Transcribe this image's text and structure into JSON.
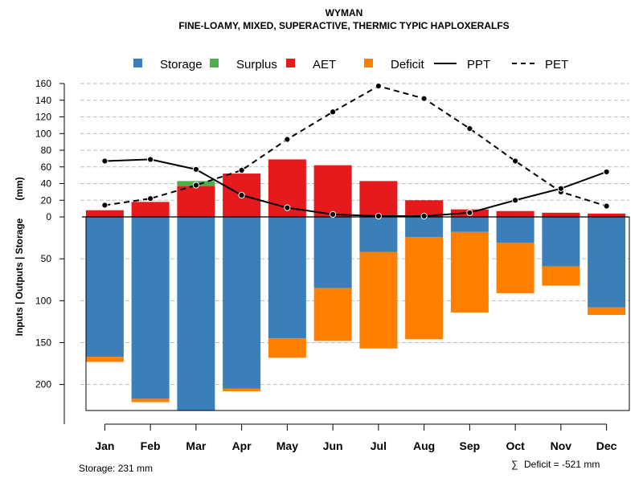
{
  "chart_data": {
    "type": "bar",
    "title": "WYMAN",
    "subtitle": "FINE-LOAMY, MIXED, SUPERACTIVE, THERMIC TYPIC HAPLOXERALFS",
    "ylabel": "Inputs | Outputs | Storage",
    "ylabel_unit": "(mm)",
    "categories": [
      "Jan",
      "Feb",
      "Mar",
      "Apr",
      "May",
      "Jun",
      "Jul",
      "Aug",
      "Sep",
      "Oct",
      "Nov",
      "Dec"
    ],
    "upper_ylim": [
      0,
      160
    ],
    "upper_ticks": [
      "0",
      "20",
      "40",
      "60",
      "80",
      "100",
      "120",
      "140",
      "160"
    ],
    "lower_ylim": [
      0,
      231
    ],
    "lower_ticks": [
      "50",
      "100",
      "150",
      "200"
    ],
    "legend": {
      "storage": "Storage",
      "surplus": "Surplus",
      "aet": "AET",
      "deficit": "Deficit",
      "ppt": "PPT",
      "pet": "PET"
    },
    "colors": {
      "storage": "#3a7fba",
      "surplus": "#4daf4a",
      "aet": "#e41a1c",
      "deficit": "#ff7f00",
      "ppt": "#000000",
      "pet": "#000000",
      "grid": "#bdbdbd"
    },
    "series": [
      {
        "name": "AET",
        "values": [
          8,
          18,
          37,
          52,
          69,
          62,
          43,
          20,
          9,
          7,
          5,
          4
        ]
      },
      {
        "name": "Surplus",
        "values": [
          0,
          0,
          6,
          0,
          0,
          0,
          0,
          0,
          0,
          0,
          0,
          0
        ]
      },
      {
        "name": "PPT",
        "values": [
          67,
          69,
          57,
          26,
          11,
          3,
          1,
          1,
          5,
          20,
          34,
          54
        ]
      },
      {
        "name": "PET",
        "values": [
          14,
          22,
          38,
          56,
          93,
          126,
          157,
          142,
          106,
          67,
          30,
          13
        ]
      },
      {
        "name": "Storage",
        "values": [
          167,
          217,
          231,
          205,
          145,
          85,
          42,
          24,
          18,
          31,
          59,
          108
        ]
      },
      {
        "name": "Deficit",
        "values": [
          6,
          4,
          0,
          3,
          23,
          63,
          115,
          122,
          96,
          60,
          23,
          9
        ]
      }
    ],
    "storage_note": "Storage: 231 mm",
    "deficit_note": "Deficit = -521 mm",
    "deficit_symbol": "∑"
  }
}
